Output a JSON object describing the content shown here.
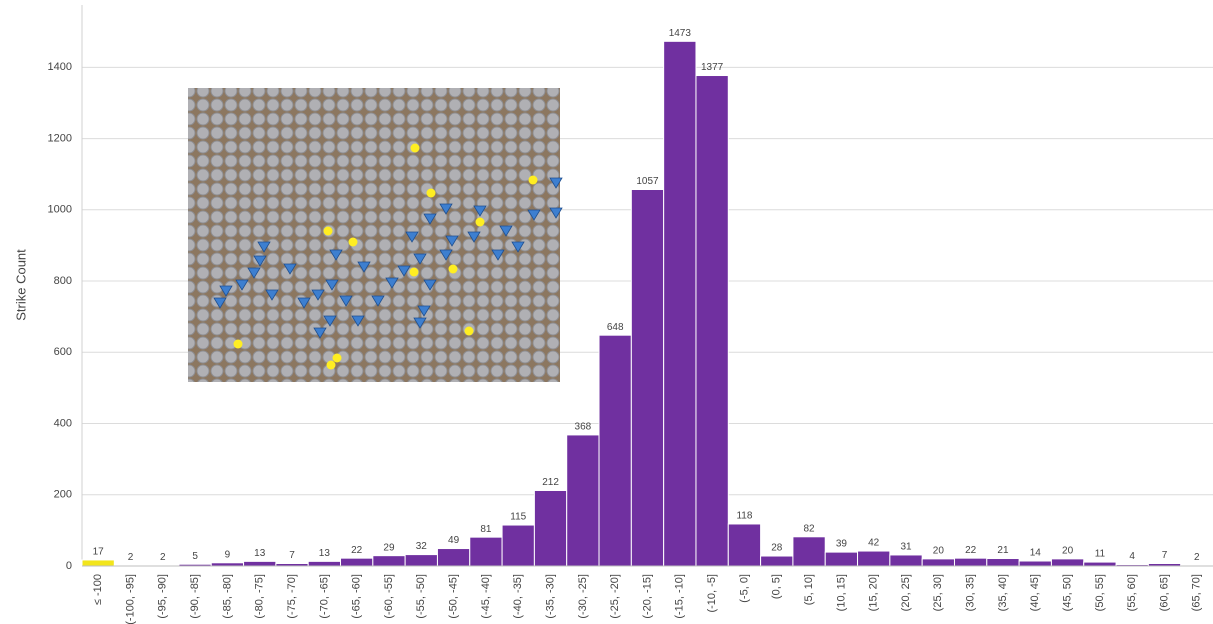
{
  "chart_data": {
    "type": "bar",
    "y_label": "Strike Count",
    "categories": [
      "≤ -100",
      "(-100, -95]",
      "(-95, -90]",
      "(-90, -85]",
      "(-85, -80]",
      "(-80, -75]",
      "(-75, -70]",
      "(-70, -65]",
      "(-65, -60]",
      "(-60, -55]",
      "(-55, -50]",
      "(-50, -45]",
      "(-45, -40]",
      "(-40, -35]",
      "(-35, -30]",
      "(-30, -25]",
      "(-25, -20]",
      "(-20, -15]",
      "(-15, -10]",
      "(-10, -5]",
      "(-5, 0]",
      "(0, 5]",
      "(5, 10]",
      "(10, 15]",
      "(15, 20]",
      "(20, 25]",
      "(25, 30]",
      "(30, 35]",
      "(35, 40]",
      "(40, 45]",
      "(45, 50]",
      "(50, 55]",
      "(55, 60]",
      "(60, 65]",
      "(65, 70]"
    ],
    "values": [
      17,
      2,
      2,
      5,
      9,
      13,
      7,
      13,
      22,
      29,
      32,
      49,
      81,
      115,
      212,
      368,
      648,
      1057,
      1473,
      1377,
      118,
      28,
      82,
      39,
      42,
      31,
      20,
      22,
      21,
      14,
      20,
      11,
      4,
      7,
      2
    ],
    "colors": [
      "#f2e51c",
      "#7030a0",
      "#7030a0",
      "#7030a0",
      "#7030a0",
      "#7030a0",
      "#7030a0",
      "#7030a0",
      "#7030a0",
      "#7030a0",
      "#7030a0",
      "#7030a0",
      "#7030a0",
      "#7030a0",
      "#7030a0",
      "#7030a0",
      "#7030a0",
      "#7030a0",
      "#7030a0",
      "#7030a0",
      "#7030a0",
      "#7030a0",
      "#7030a0",
      "#7030a0",
      "#7030a0",
      "#7030a0",
      "#7030a0",
      "#7030a0",
      "#7030a0",
      "#7030a0",
      "#7030a0",
      "#7030a0",
      "#7030a0",
      "#7030a0",
      "#7030a0"
    ],
    "ylim": [
      0,
      1575
    ],
    "yticks": [
      0,
      200,
      400,
      600,
      800,
      1000,
      1200,
      1400
    ],
    "grid": true
  }
}
